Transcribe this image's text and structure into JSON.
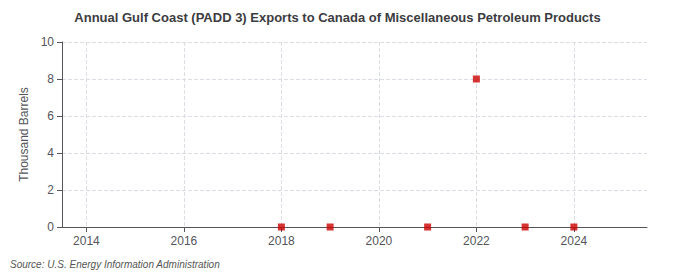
{
  "chart_data": {
    "type": "scatter",
    "title": "Annual Gulf Coast (PADD 3) Exports to Canada of Miscellaneous Petroleum Products",
    "ylabel": "Thousand Barrels",
    "annotation": "Source: U.S. Energy Information Administration",
    "x": [
      2018,
      2019,
      2021,
      2022,
      2023,
      2024
    ],
    "values": [
      0.0,
      0.0,
      0.0,
      8.0,
      0.0,
      0.0
    ],
    "color": "#cc0000",
    "marker": "square",
    "xlim": [
      2013.5,
      2025.5
    ],
    "ylim": [
      0,
      10
    ],
    "xticks": [
      2014,
      2016,
      2018,
      2020,
      2022,
      2024
    ],
    "yticks": [
      0,
      2,
      4,
      6,
      8,
      10
    ],
    "grid": true
  }
}
